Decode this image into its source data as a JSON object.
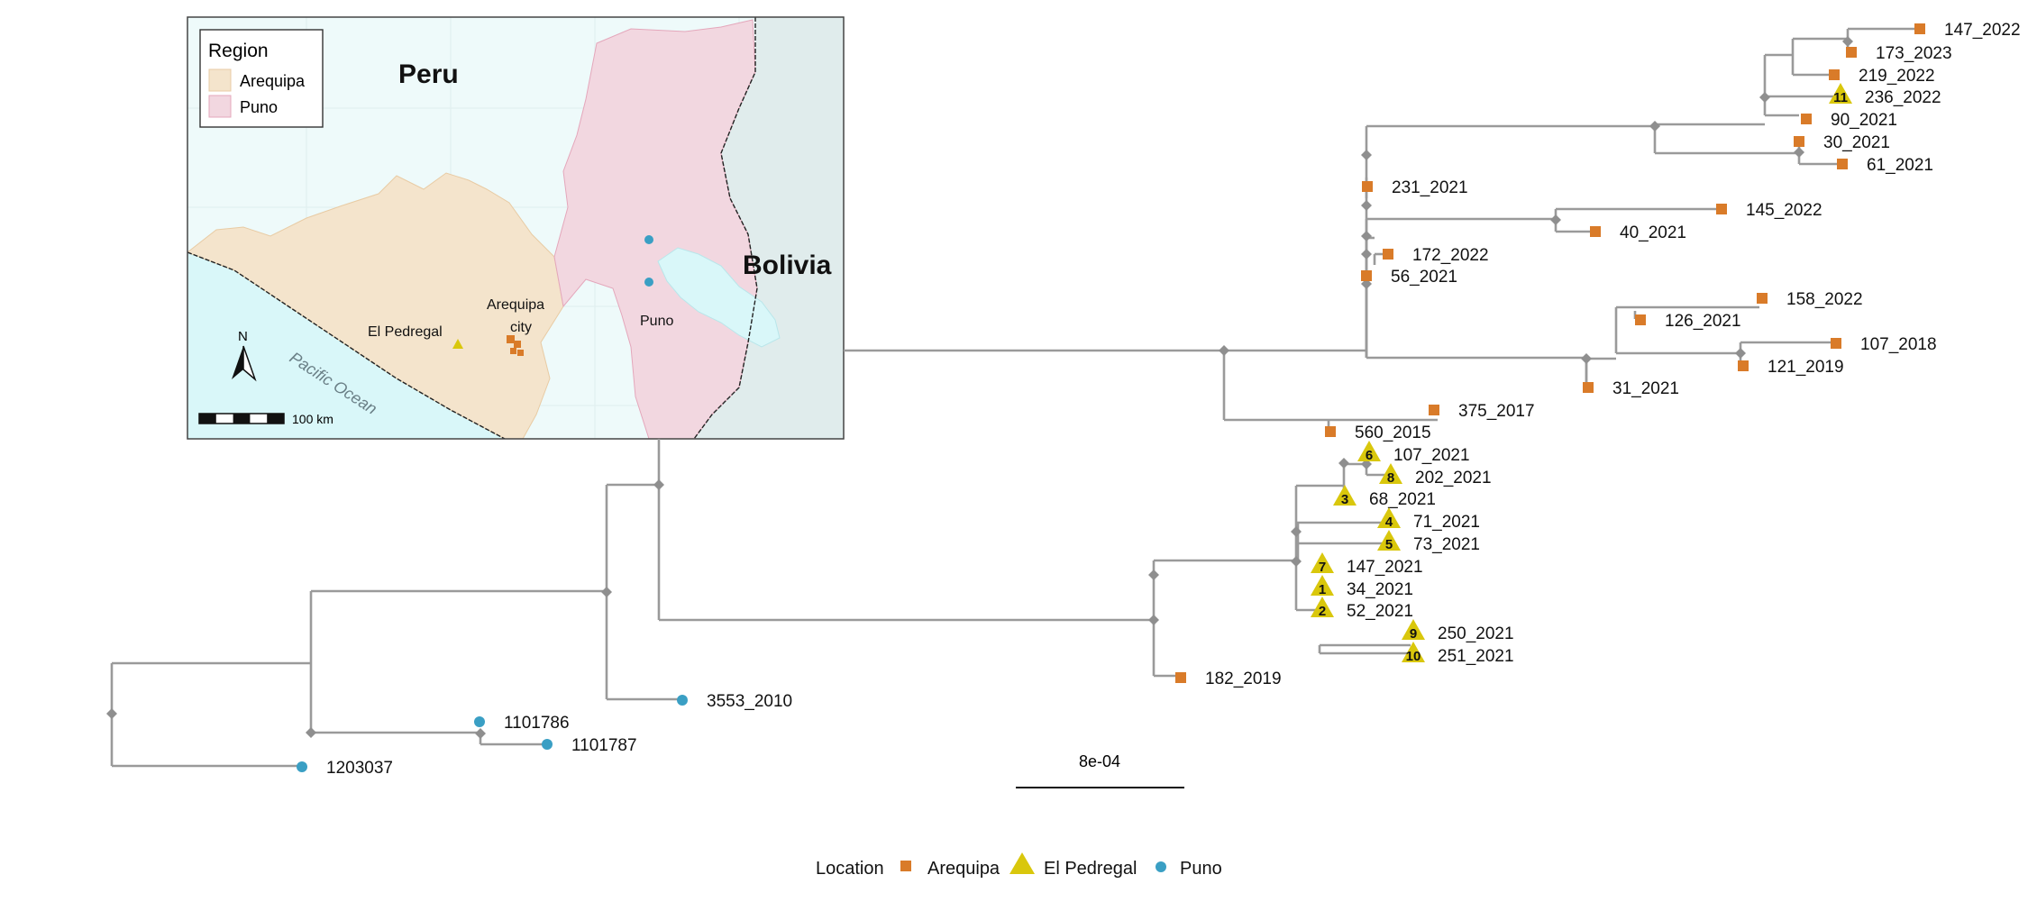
{
  "colors": {
    "arequipa": "#d97b29",
    "el_pedregal": "#d9c70c",
    "puno": "#3a9fc4",
    "branch": "#9a9a9a",
    "arequipa_region": "#f4e4cc",
    "puno_region": "#f2d7e0",
    "ocean": "#d9f7f9",
    "bolivia": "#e0ecec"
  },
  "tree": {
    "tips": [
      {
        "label": "147_2022",
        "loc": "arequipa"
      },
      {
        "label": "173_2023",
        "loc": "arequipa"
      },
      {
        "label": "219_2022",
        "loc": "arequipa"
      },
      {
        "label": "236_2022",
        "loc": "el_pedregal",
        "num": "11"
      },
      {
        "label": "90_2021",
        "loc": "arequipa"
      },
      {
        "label": "30_2021",
        "loc": "arequipa"
      },
      {
        "label": "61_2021",
        "loc": "arequipa"
      },
      {
        "label": "231_2021",
        "loc": "arequipa"
      },
      {
        "label": "145_2022",
        "loc": "arequipa"
      },
      {
        "label": "40_2021",
        "loc": "arequipa"
      },
      {
        "label": "172_2022",
        "loc": "arequipa"
      },
      {
        "label": "56_2021",
        "loc": "arequipa"
      },
      {
        "label": "158_2022",
        "loc": "arequipa"
      },
      {
        "label": "126_2021",
        "loc": "arequipa"
      },
      {
        "label": "107_2018",
        "loc": "arequipa"
      },
      {
        "label": "121_2019",
        "loc": "arequipa"
      },
      {
        "label": "31_2021",
        "loc": "arequipa"
      },
      {
        "label": "375_2017",
        "loc": "arequipa"
      },
      {
        "label": "560_2015",
        "loc": "arequipa"
      },
      {
        "label": "107_2021",
        "loc": "el_pedregal",
        "num": "6"
      },
      {
        "label": "202_2021",
        "loc": "el_pedregal",
        "num": "8"
      },
      {
        "label": "68_2021",
        "loc": "el_pedregal",
        "num": "3"
      },
      {
        "label": "71_2021",
        "loc": "el_pedregal",
        "num": "4"
      },
      {
        "label": "73_2021",
        "loc": "el_pedregal",
        "num": "5"
      },
      {
        "label": "147_2021",
        "loc": "el_pedregal",
        "num": "7"
      },
      {
        "label": "34_2021",
        "loc": "el_pedregal",
        "num": "1"
      },
      {
        "label": "52_2021",
        "loc": "el_pedregal",
        "num": "2"
      },
      {
        "label": "250_2021",
        "loc": "el_pedregal",
        "num": "9"
      },
      {
        "label": "251_2021",
        "loc": "el_pedregal",
        "num": "10"
      },
      {
        "label": "182_2019",
        "loc": "arequipa"
      },
      {
        "label": "3553_2010",
        "loc": "puno"
      },
      {
        "label": "1101786",
        "loc": "puno"
      },
      {
        "label": "1101787",
        "loc": "puno"
      },
      {
        "label": "1203037",
        "loc": "puno"
      }
    ],
    "scale_bar_label": "8e-04"
  },
  "legend": {
    "title": "Location",
    "items": [
      {
        "label": "Arequipa",
        "loc": "arequipa",
        "shape": "square"
      },
      {
        "label": "El Pedregal",
        "loc": "el_pedregal",
        "shape": "triangle"
      },
      {
        "label": "Puno",
        "loc": "puno",
        "shape": "circle"
      }
    ]
  },
  "map": {
    "legend_title": "Region",
    "legend_items": [
      "Arequipa",
      "Puno"
    ],
    "country_peru": "Peru",
    "country_bolivia": "Bolivia",
    "ocean_label": "Pacific Ocean",
    "place_el_pedregal": "El Pedregal",
    "place_arequipa_line1": "Arequipa",
    "place_arequipa_line2": "city",
    "place_puno": "Puno",
    "north_label": "N",
    "scale_label": "100 km"
  }
}
